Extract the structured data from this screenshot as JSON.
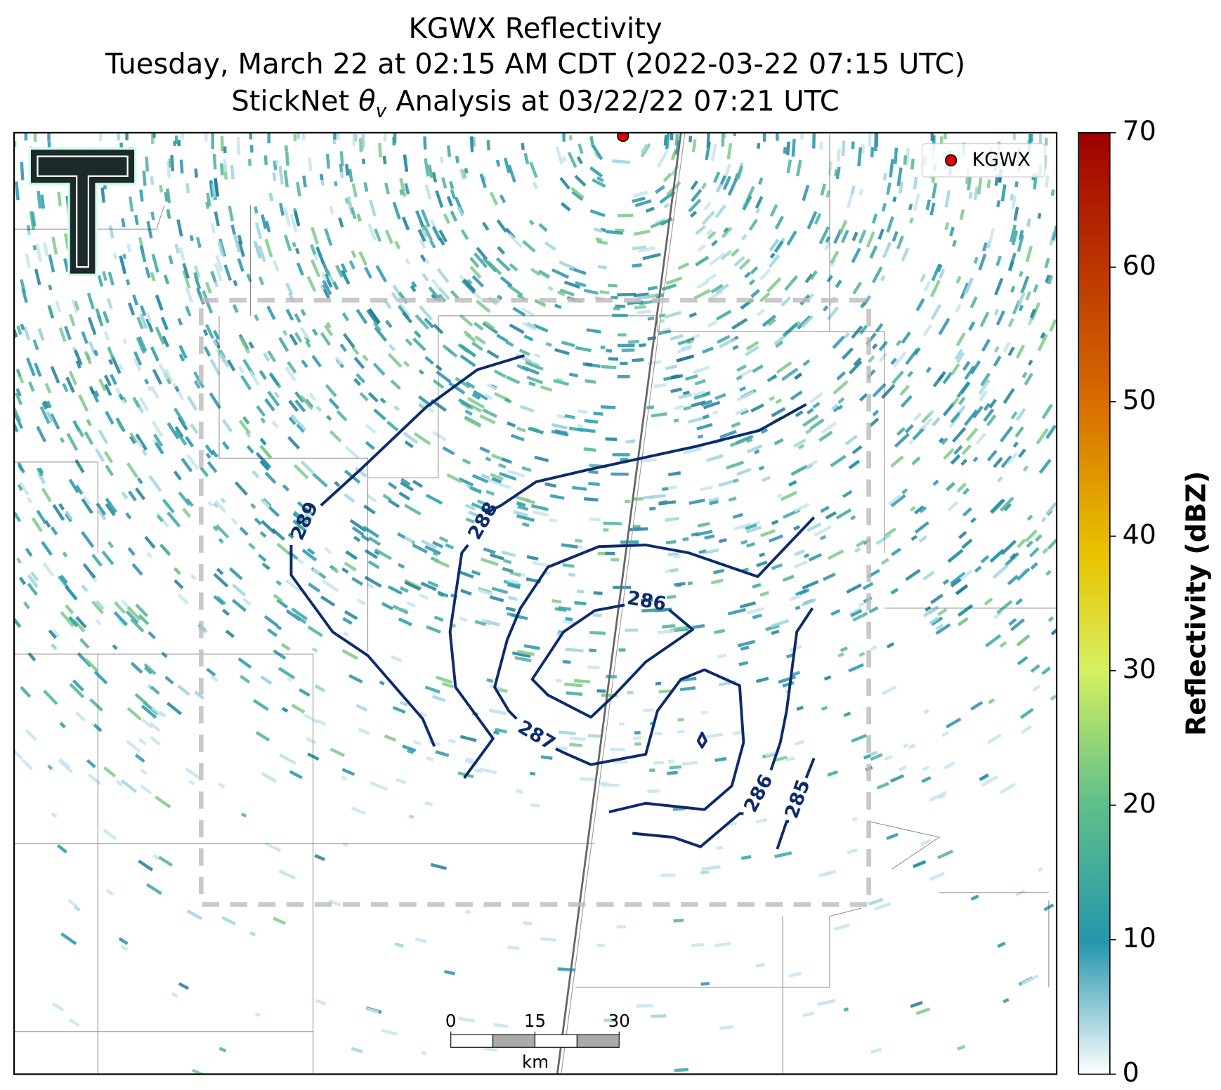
{
  "title": {
    "line1": "KGWX Reflectivity",
    "line2": "Tuesday, March 22 at 02:15 AM CDT (2022-03-22 07:15 UTC)",
    "line3": {
      "prefix": "StickNet",
      "symbol": "θ",
      "subscript": "v",
      "suffix": "Analysis at 03/22/22 07:21 UTC"
    }
  },
  "legend": {
    "label": "KGWX",
    "color": "#e00000"
  },
  "colorbar": {
    "label": "Reflectivity (dBZ)",
    "lim": [
      0,
      70
    ],
    "ticks": [
      0,
      10,
      20,
      30,
      40,
      50,
      60,
      70
    ]
  },
  "contours": [
    {
      "level": 289
    },
    {
      "level": 288
    },
    {
      "level": 287
    },
    {
      "level": 286
    },
    {
      "level": 286
    },
    {
      "level": 285
    }
  ],
  "scale_bar": {
    "ticks": [
      0,
      15,
      30
    ],
    "unit": "km"
  }
}
